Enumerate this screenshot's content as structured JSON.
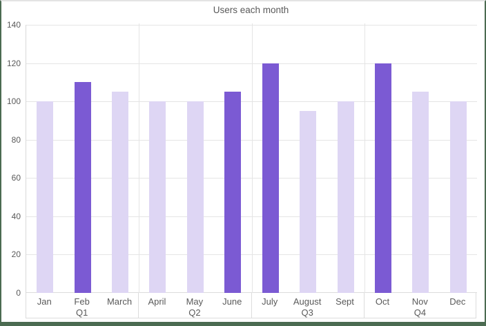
{
  "chart_data": {
    "type": "bar",
    "title": "Users each month",
    "categories": [
      "Jan",
      "Feb",
      "March",
      "April",
      "May",
      "June",
      "July",
      "August",
      "Sept",
      "Oct",
      "Nov",
      "Dec"
    ],
    "values": [
      100,
      110,
      105,
      100,
      100,
      105,
      120,
      95,
      100,
      120,
      105,
      100
    ],
    "emphasized": [
      false,
      true,
      false,
      false,
      false,
      true,
      true,
      false,
      false,
      true,
      false,
      false
    ],
    "groups": [
      {
        "label": "Q1",
        "months": [
          "Jan",
          "Feb",
          "March"
        ]
      },
      {
        "label": "Q2",
        "months": [
          "April",
          "May",
          "June"
        ]
      },
      {
        "label": "Q3",
        "months": [
          "July",
          "August",
          "Sept"
        ]
      },
      {
        "label": "Q4",
        "months": [
          "Oct",
          "Nov",
          "Dec"
        ]
      }
    ],
    "xlabel": "",
    "ylabel": "",
    "ylim": [
      0,
      140
    ],
    "yticks": [
      0,
      20,
      40,
      60,
      80,
      100,
      120,
      140
    ],
    "grid": true,
    "legend_position": "none",
    "colors": {
      "bar_default": "#ded6f4",
      "bar_emphasis": "#7b5ad3",
      "gridline": "#e4e4e4",
      "axis_text": "#595959",
      "frame_accent": "#4b6b51"
    }
  }
}
